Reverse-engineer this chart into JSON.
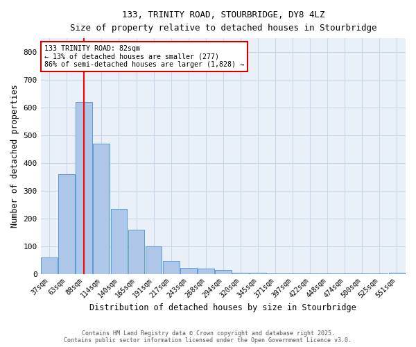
{
  "title1": "133, TRINITY ROAD, STOURBRIDGE, DY8 4LZ",
  "title2": "Size of property relative to detached houses in Stourbridge",
  "xlabel": "Distribution of detached houses by size in Stourbridge",
  "ylabel": "Number of detached properties",
  "categories": [
    "37sqm",
    "63sqm",
    "88sqm",
    "114sqm",
    "140sqm",
    "165sqm",
    "191sqm",
    "217sqm",
    "243sqm",
    "268sqm",
    "294sqm",
    "320sqm",
    "345sqm",
    "371sqm",
    "397sqm",
    "422sqm",
    "448sqm",
    "474sqm",
    "500sqm",
    "525sqm",
    "551sqm"
  ],
  "values": [
    60,
    360,
    620,
    470,
    235,
    160,
    98,
    47,
    22,
    18,
    13,
    5,
    3,
    2,
    1,
    1,
    1,
    1,
    1,
    1,
    5
  ],
  "bar_color": "#aec6e8",
  "bar_edge_color": "#5b9bd5",
  "red_line_index": 2,
  "annotation_lines": [
    "133 TRINITY ROAD: 82sqm",
    "← 13% of detached houses are smaller (277)",
    "86% of semi-detached houses are larger (1,828) →"
  ],
  "annotation_box_color": "#ffffff",
  "annotation_box_edge_color": "#cc0000",
  "ylim": [
    0,
    850
  ],
  "yticks": [
    0,
    100,
    200,
    300,
    400,
    500,
    600,
    700,
    800
  ],
  "grid_color": "#c8d8e8",
  "bg_color": "#eaf0f8",
  "footer_line1": "Contains HM Land Registry data © Crown copyright and database right 2025.",
  "footer_line2": "Contains public sector information licensed under the Open Government Licence v3.0."
}
